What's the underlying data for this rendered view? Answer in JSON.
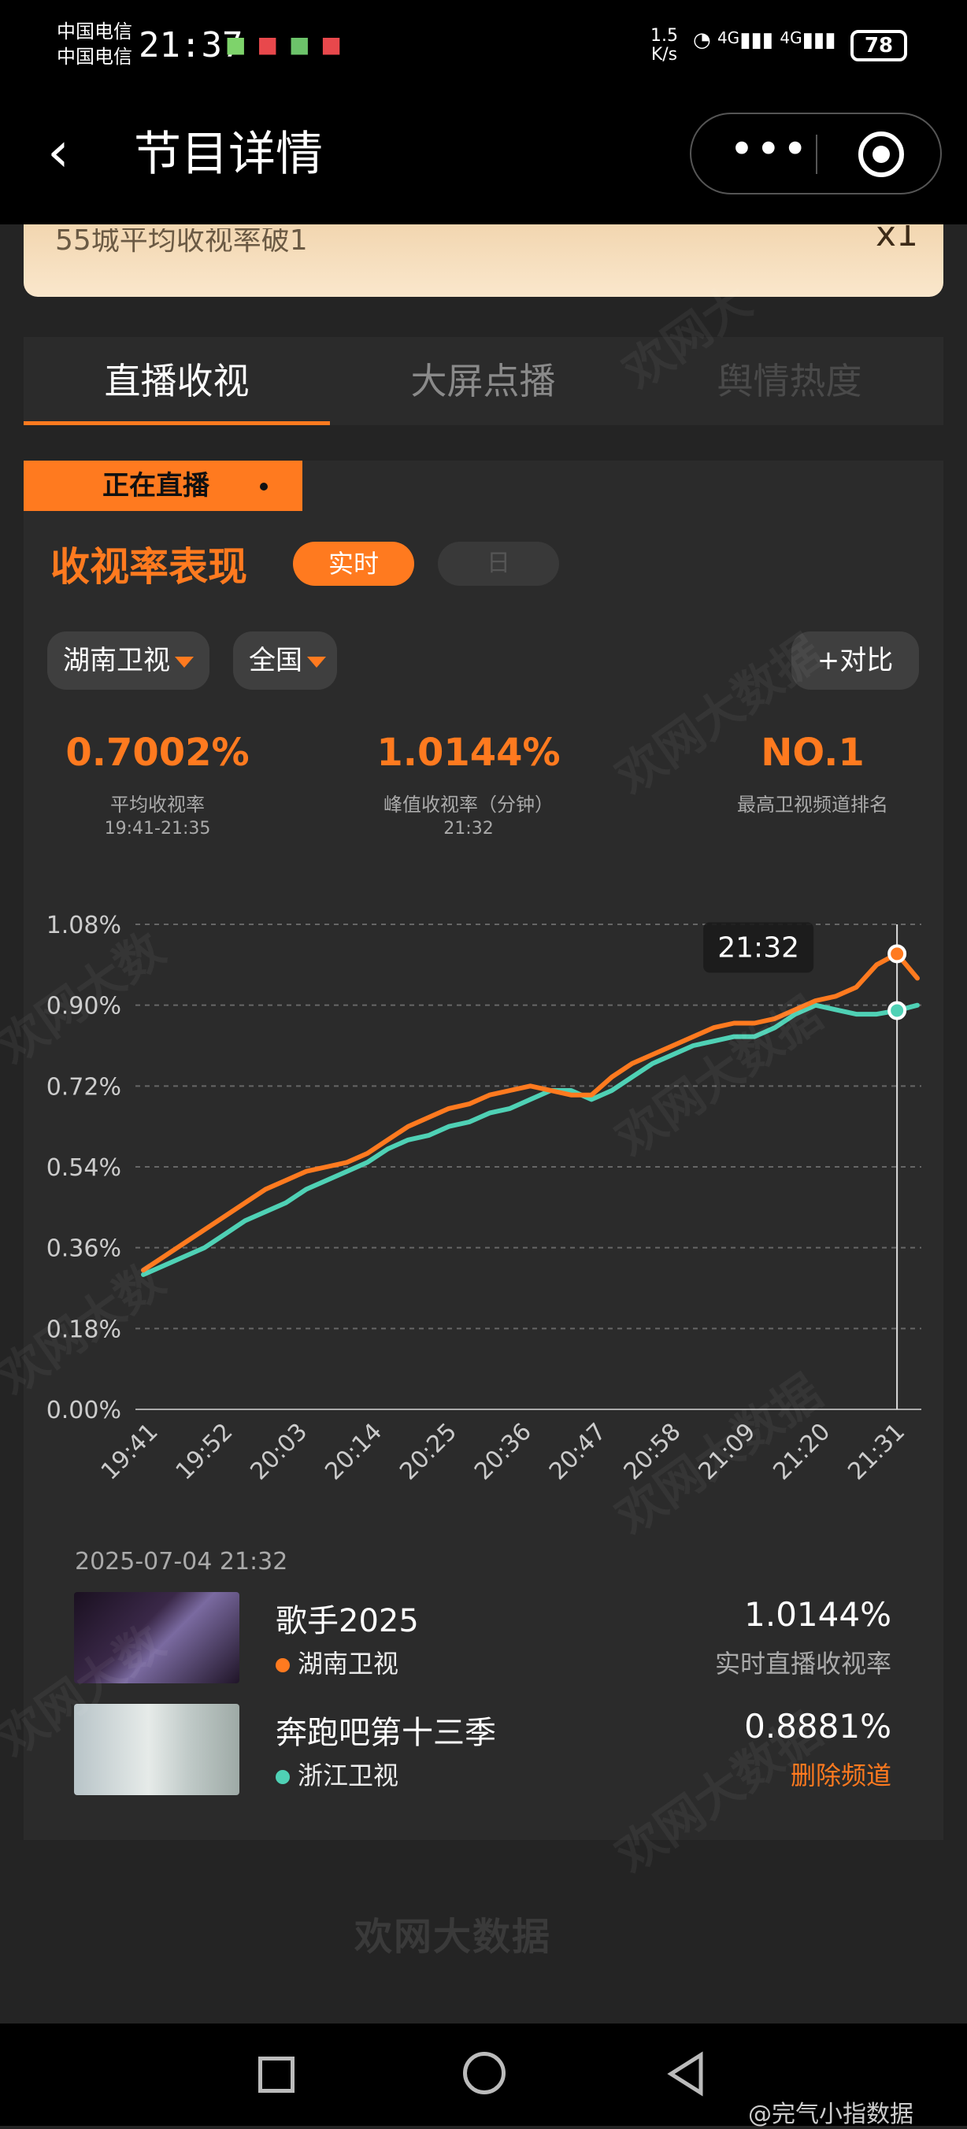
{
  "status_bar": {
    "carrier_1": "中国电信",
    "carrier_2": "中国电信",
    "time": "21:37",
    "net_speed_value": "1.5",
    "net_speed_unit": "K/s",
    "signal_1": "4G",
    "signal_2": "4G",
    "battery": "78"
  },
  "nav": {
    "title": "节目详情"
  },
  "banner": {
    "text": "55城平均收视率破1",
    "suffix": "x1"
  },
  "tabs": [
    {
      "label": "直播收视",
      "active": true
    },
    {
      "label": "大屏点播",
      "active": false
    },
    {
      "label": "舆情热度",
      "active": false
    }
  ],
  "live_badge": "正在直播",
  "section": {
    "title": "收视率表现",
    "toggle_on": "实时",
    "toggle_off": "日"
  },
  "filters": {
    "channel": "湖南卫视",
    "region": "全国",
    "compare": "+对比"
  },
  "stats": [
    {
      "value": "0.7002%",
      "label": "平均收视率",
      "sub": "19:41-21:35"
    },
    {
      "value": "1.0144%",
      "label": "峰值收视率（分钟）",
      "sub": "21:32"
    },
    {
      "value": "NO.1",
      "label": "最高卫视频道排名",
      "sub": ""
    }
  ],
  "chart_data": {
    "type": "line",
    "x_ticks": [
      "19:41",
      "19:52",
      "20:03",
      "20:14",
      "20:25",
      "20:36",
      "20:47",
      "20:58",
      "21:09",
      "21:20",
      "21:31"
    ],
    "y_ticks": [
      "0.00%",
      "0.18%",
      "0.36%",
      "0.54%",
      "0.72%",
      "0.90%",
      "1.08%"
    ],
    "ylim": [
      0,
      1.08
    ],
    "grid": true,
    "tooltip_label": "21:32",
    "x_minutes_axis": {
      "start": "19:41",
      "end": "21:35"
    },
    "series": [
      {
        "name": "湖南卫视",
        "color": "#ff7a1f",
        "points": [
          [
            "19:41",
            0.31
          ],
          [
            "19:44",
            0.34
          ],
          [
            "19:47",
            0.37
          ],
          [
            "19:50",
            0.4
          ],
          [
            "19:53",
            0.43
          ],
          [
            "19:56",
            0.46
          ],
          [
            "19:59",
            0.49
          ],
          [
            "20:02",
            0.51
          ],
          [
            "20:05",
            0.53
          ],
          [
            "20:08",
            0.54
          ],
          [
            "20:11",
            0.55
          ],
          [
            "20:14",
            0.57
          ],
          [
            "20:17",
            0.6
          ],
          [
            "20:20",
            0.63
          ],
          [
            "20:23",
            0.65
          ],
          [
            "20:26",
            0.67
          ],
          [
            "20:29",
            0.68
          ],
          [
            "20:32",
            0.7
          ],
          [
            "20:35",
            0.71
          ],
          [
            "20:38",
            0.72
          ],
          [
            "20:41",
            0.71
          ],
          [
            "20:44",
            0.7
          ],
          [
            "20:47",
            0.7
          ],
          [
            "20:50",
            0.74
          ],
          [
            "20:53",
            0.77
          ],
          [
            "20:56",
            0.79
          ],
          [
            "20:59",
            0.81
          ],
          [
            "21:02",
            0.83
          ],
          [
            "21:05",
            0.85
          ],
          [
            "21:08",
            0.86
          ],
          [
            "21:11",
            0.86
          ],
          [
            "21:14",
            0.87
          ],
          [
            "21:17",
            0.89
          ],
          [
            "21:20",
            0.91
          ],
          [
            "21:23",
            0.92
          ],
          [
            "21:26",
            0.94
          ],
          [
            "21:29",
            0.99
          ],
          [
            "21:32",
            1.0144
          ],
          [
            "21:35",
            0.96
          ]
        ]
      },
      {
        "name": "浙江卫视",
        "color": "#4fd1b5",
        "points": [
          [
            "19:41",
            0.3
          ],
          [
            "19:44",
            0.32
          ],
          [
            "19:47",
            0.34
          ],
          [
            "19:50",
            0.36
          ],
          [
            "19:53",
            0.39
          ],
          [
            "19:56",
            0.42
          ],
          [
            "19:59",
            0.44
          ],
          [
            "20:02",
            0.46
          ],
          [
            "20:05",
            0.49
          ],
          [
            "20:08",
            0.51
          ],
          [
            "20:11",
            0.53
          ],
          [
            "20:14",
            0.55
          ],
          [
            "20:17",
            0.58
          ],
          [
            "20:20",
            0.6
          ],
          [
            "20:23",
            0.61
          ],
          [
            "20:26",
            0.63
          ],
          [
            "20:29",
            0.64
          ],
          [
            "20:32",
            0.66
          ],
          [
            "20:35",
            0.67
          ],
          [
            "20:38",
            0.69
          ],
          [
            "20:41",
            0.71
          ],
          [
            "20:44",
            0.71
          ],
          [
            "20:47",
            0.69
          ],
          [
            "20:50",
            0.71
          ],
          [
            "20:53",
            0.74
          ],
          [
            "20:56",
            0.77
          ],
          [
            "20:59",
            0.79
          ],
          [
            "21:02",
            0.81
          ],
          [
            "21:05",
            0.82
          ],
          [
            "21:08",
            0.83
          ],
          [
            "21:11",
            0.83
          ],
          [
            "21:14",
            0.85
          ],
          [
            "21:17",
            0.88
          ],
          [
            "21:20",
            0.9
          ],
          [
            "21:23",
            0.89
          ],
          [
            "21:26",
            0.88
          ],
          [
            "21:29",
            0.88
          ],
          [
            "21:32",
            0.8881
          ],
          [
            "21:35",
            0.9
          ]
        ]
      }
    ]
  },
  "list": {
    "date": "2025-07-04 21:32",
    "rows": [
      {
        "show": "歌手2025",
        "channel": "湖南卫视",
        "channel_color": "#ff7a1f",
        "value": "1.0144%",
        "sub": "实时直播收视率",
        "sub_color": "#aaaaaa"
      },
      {
        "show": "奔跑吧第十三季",
        "channel": "浙江卫视",
        "channel_color": "#4fd1b5",
        "value": "0.8881%",
        "sub": "删除频道",
        "sub_color": "#ff7a1f"
      }
    ]
  },
  "footer_brand": "欢网大数据",
  "weibo_tag": "@完气小指数据"
}
